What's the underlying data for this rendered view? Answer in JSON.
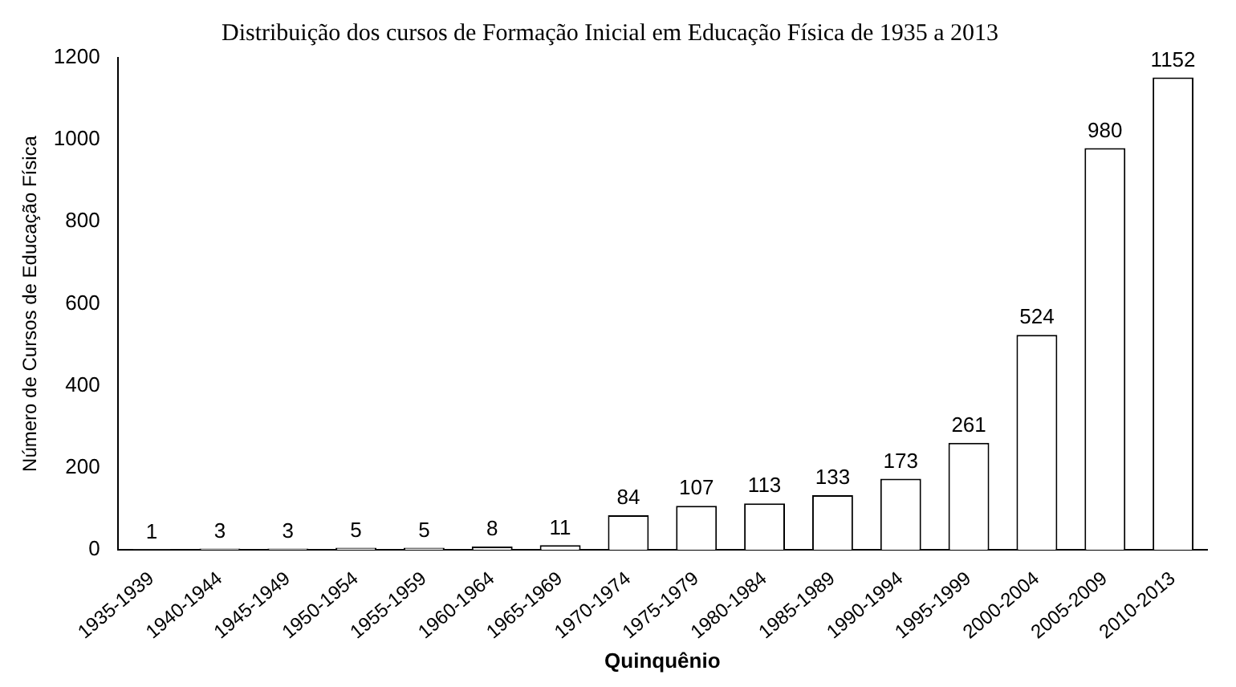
{
  "chart_data": {
    "type": "bar",
    "title": "Distribuição dos cursos de Formação Inicial em Educação Física de 1935 a 2013",
    "xlabel": "Quinquênio",
    "ylabel": "Número de Cursos de Educação Física",
    "categories": [
      "1935-1939",
      "1940-1944",
      "1945-1949",
      "1950-1954",
      "1955-1959",
      "1960-1964",
      "1965-1969",
      "1970-1974",
      "1975-1979",
      "1980-1984",
      "1985-1989",
      "1990-1994",
      "1995-1999",
      "2000-2004",
      "2005-2009",
      "2010-2013"
    ],
    "values": [
      1,
      3,
      3,
      5,
      5,
      8,
      11,
      84,
      107,
      113,
      133,
      173,
      261,
      524,
      980,
      1152
    ],
    "color": "#ffffff",
    "ylim": [
      0,
      1200
    ],
    "yticks": [
      0,
      200,
      400,
      600,
      800,
      1000,
      1200
    ],
    "grid": false,
    "legend": false,
    "data_labels": true
  }
}
